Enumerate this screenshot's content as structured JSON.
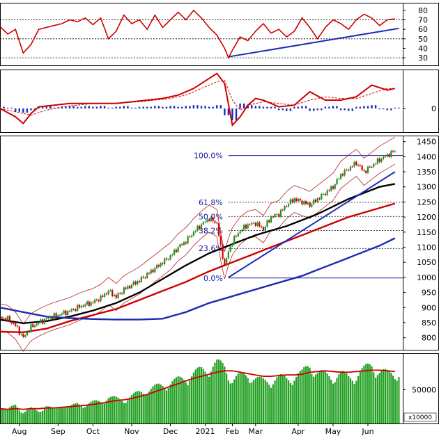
{
  "chart_data": [
    {
      "type": "line",
      "panel": "rsi",
      "y_ticks": [
        80,
        70,
        60,
        50,
        40,
        30
      ],
      "ylim": [
        22,
        88
      ],
      "reference_lines": [
        70,
        50,
        30
      ],
      "colors": {
        "line": "#cc0000",
        "trend": "#1a2bb5"
      },
      "trendline": {
        "x": [
          59,
          103
        ],
        "y": [
          31,
          61
        ]
      },
      "series": [
        {
          "x": [
            0,
            2,
            4,
            6,
            8,
            10,
            12,
            14,
            16,
            18,
            20,
            22,
            24,
            26,
            28,
            30,
            32,
            34,
            36,
            38,
            40,
            42,
            44,
            46,
            48,
            50,
            52,
            54,
            56,
            58,
            59,
            60,
            62,
            64,
            66,
            68,
            70,
            72,
            74,
            76,
            78,
            80,
            82,
            84,
            86,
            88,
            90,
            92,
            94,
            96,
            98,
            100,
            102
          ],
          "values": [
            63,
            55,
            60,
            35,
            44,
            60,
            62,
            64,
            66,
            70,
            68,
            72,
            65,
            72,
            50,
            58,
            75,
            66,
            70,
            60,
            75,
            62,
            70,
            78,
            70,
            80,
            72,
            62,
            54,
            40,
            30,
            38,
            52,
            48,
            58,
            66,
            56,
            60,
            52,
            58,
            72,
            62,
            50,
            62,
            70,
            66,
            60,
            70,
            76,
            72,
            64,
            70,
            71
          ]
        }
      ]
    },
    {
      "type": "bar",
      "panel": "macd",
      "y_ticks": [
        0
      ],
      "colors": {
        "macd": "#cc0000",
        "signal": "#cc0000",
        "histogram": "#1a2bb5"
      },
      "series": [
        {
          "x": [
            0,
            4,
            6,
            8,
            10,
            14,
            18,
            22,
            26,
            30,
            34,
            38,
            42,
            46,
            50,
            54,
            56,
            58,
            60,
            62,
            64,
            66,
            68,
            72,
            76,
            80,
            84,
            88,
            92,
            96,
            100,
            102
          ],
          "values": [
            0,
            -10,
            -18,
            -6,
            2,
            4,
            6,
            6,
            6,
            6,
            8,
            10,
            12,
            16,
            24,
            36,
            42,
            30,
            -20,
            -10,
            4,
            12,
            10,
            2,
            4,
            20,
            10,
            10,
            14,
            28,
            22,
            24
          ]
        },
        {
          "x": [
            0,
            4,
            8,
            12,
            16,
            20,
            24,
            28,
            32,
            36,
            40,
            44,
            48,
            52,
            56,
            58,
            60,
            62,
            64,
            68,
            72,
            76,
            80,
            84,
            88,
            92,
            96,
            100,
            102
          ],
          "values": [
            0,
            -4,
            -8,
            -2,
            2,
            4,
            6,
            6,
            7,
            8,
            10,
            12,
            16,
            24,
            32,
            34,
            10,
            -2,
            4,
            8,
            6,
            4,
            10,
            14,
            12,
            12,
            18,
            24,
            24
          ]
        },
        {
          "x": [
            0,
            2,
            4,
            6,
            8,
            10,
            12,
            14,
            16,
            18,
            20,
            22,
            24,
            26,
            28,
            30,
            32,
            34,
            36,
            38,
            40,
            42,
            44,
            46,
            48,
            50,
            52,
            54,
            56,
            58,
            60,
            62,
            64,
            66,
            68,
            70,
            72,
            74,
            76,
            78,
            80,
            82,
            84,
            86,
            88,
            90,
            92,
            94,
            96,
            98,
            100,
            102
          ],
          "values": [
            2,
            1,
            -4,
            -5,
            -2,
            2,
            3,
            1,
            2,
            3,
            2,
            3,
            2,
            3,
            1,
            2,
            3,
            1,
            2,
            2,
            3,
            2,
            3,
            2,
            3,
            4,
            3,
            2,
            4,
            -8,
            -14,
            6,
            4,
            3,
            2,
            2,
            -2,
            -3,
            2,
            3,
            -3,
            -2,
            2,
            3,
            -2,
            -3,
            2,
            3,
            4,
            -1,
            -2,
            1
          ]
        }
      ]
    },
    {
      "type": "line",
      "panel": "price",
      "y_ticks": [
        1450,
        1400,
        1350,
        1300,
        1250,
        1200,
        1150,
        1100,
        1050,
        1000,
        950,
        900,
        850,
        800
      ],
      "ylim": [
        760,
        1470
      ],
      "x_tick_labels": [
        "Aug",
        "Sep",
        "Oct",
        "Nov",
        "Dec",
        "2021",
        "Feb",
        "Mar",
        "Apr",
        "May",
        "Jun"
      ],
      "x_tick_positions": [
        5,
        15,
        24,
        34,
        44,
        53,
        60,
        66,
        77,
        86,
        95
      ],
      "fibonacci": [
        {
          "label": "100.0%",
          "value": 1404,
          "x_start": 59
        },
        {
          "label": "61.8%",
          "value": 1249,
          "x_start": 59
        },
        {
          "label": "50.0%",
          "value": 1202,
          "x_start": 59
        },
        {
          "label": "38.2%",
          "value": 1155,
          "x_start": 59
        },
        {
          "label": "23.6%",
          "value": 1096,
          "x_start": 59
        },
        {
          "label": "0.0%",
          "value": 998,
          "x_start": 59
        }
      ],
      "colors": {
        "up": "#1f8f1f",
        "down": "#cc0000",
        "ma_black": "#000000",
        "ma_red": "#cc0000",
        "ma_blue": "#1a2bb5",
        "trend": "#1a2bb5",
        "fib": "#1a1a9a"
      },
      "close": {
        "x": [
          0,
          2,
          4,
          6,
          8,
          10,
          12,
          14,
          16,
          18,
          20,
          22,
          24,
          26,
          28,
          30,
          32,
          34,
          36,
          38,
          40,
          42,
          44,
          46,
          48,
          50,
          52,
          54,
          56,
          57,
          58,
          59,
          60,
          62,
          64,
          66,
          68,
          70,
          72,
          74,
          76,
          78,
          80,
          82,
          84,
          86,
          88,
          90,
          92,
          94,
          96,
          98,
          100,
          102
        ],
        "values": [
          868,
          862,
          840,
          800,
          835,
          850,
          862,
          872,
          880,
          888,
          900,
          910,
          918,
          932,
          955,
          935,
          960,
          975,
          990,
          1010,
          1030,
          1050,
          1070,
          1100,
          1120,
          1150,
          1175,
          1195,
          1180,
          1100,
          1040,
          1085,
          1120,
          1155,
          1175,
          1180,
          1160,
          1200,
          1210,
          1240,
          1260,
          1250,
          1240,
          1260,
          1280,
          1300,
          1340,
          1360,
          1380,
          1350,
          1370,
          1390,
          1405,
          1420
        ]
      },
      "moving_averages": [
        {
          "name": "black",
          "x": [
            0,
            6,
            12,
            18,
            24,
            30,
            36,
            42,
            48,
            54,
            58,
            62,
            66,
            70,
            74,
            78,
            82,
            86,
            90,
            94,
            98,
            102
          ],
          "values": [
            860,
            848,
            855,
            870,
            890,
            915,
            950,
            995,
            1040,
            1080,
            1100,
            1120,
            1140,
            1155,
            1170,
            1190,
            1210,
            1235,
            1260,
            1280,
            1300,
            1310
          ]
        },
        {
          "name": "red",
          "x": [
            0,
            6,
            12,
            18,
            24,
            30,
            36,
            42,
            48,
            54,
            58,
            62,
            66,
            70,
            74,
            78,
            82,
            86,
            90,
            94,
            98,
            102
          ],
          "values": [
            820,
            818,
            830,
            855,
            875,
            895,
            925,
            955,
            985,
            1020,
            1040,
            1060,
            1080,
            1100,
            1120,
            1140,
            1160,
            1180,
            1200,
            1215,
            1230,
            1245
          ]
        },
        {
          "name": "blue",
          "x": [
            0,
            6,
            12,
            18,
            24,
            30,
            36,
            42,
            48,
            54,
            58,
            62,
            66,
            70,
            74,
            78,
            82,
            86,
            90,
            94,
            98,
            102
          ],
          "values": [
            900,
            885,
            870,
            865,
            862,
            860,
            860,
            863,
            885,
            915,
            930,
            945,
            960,
            975,
            990,
            1005,
            1025,
            1045,
            1065,
            1085,
            1105,
            1130
          ]
        }
      ],
      "trendline": {
        "x": [
          59,
          102
        ],
        "y": [
          1000,
          1350
        ]
      }
    },
    {
      "type": "bar",
      "panel": "volume",
      "y_ticks": [
        50000
      ],
      "units_label": "x10000",
      "colors": {
        "bars": "#22a022",
        "ma": "#cc0000"
      },
      "x": [
        0,
        2,
        4,
        6,
        8,
        10,
        12,
        14,
        16,
        18,
        20,
        22,
        24,
        26,
        28,
        30,
        32,
        34,
        36,
        38,
        40,
        42,
        44,
        46,
        48,
        50,
        52,
        54,
        56,
        58,
        60,
        62,
        64,
        66,
        68,
        70,
        72,
        74,
        76,
        78,
        80,
        82,
        84,
        86,
        88,
        90,
        92,
        94,
        96,
        98,
        100,
        102
      ],
      "values": [
        28000,
        22000,
        30000,
        18000,
        24000,
        20000,
        28000,
        22000,
        30000,
        26000,
        32000,
        30000,
        34000,
        36000,
        42000,
        40000,
        38000,
        44000,
        50000,
        54000,
        58000,
        62000,
        66000,
        70000,
        74000,
        80000,
        86000,
        90000,
        96000,
        92000,
        70000,
        76000,
        80000,
        72000,
        68000,
        70000,
        74000,
        72000,
        76000,
        80000,
        96000,
        82000,
        78000,
        76000,
        80000,
        74000,
        78000,
        86000,
        96000,
        84000,
        80000,
        82000
      ],
      "ma": [
        22000,
        21000,
        22000,
        21000,
        22000,
        22000,
        23000,
        23000,
        24000,
        25000,
        26000,
        27000,
        28000,
        30000,
        32000,
        34000,
        35000,
        37000,
        40000,
        43000,
        47000,
        51000,
        55000,
        59000,
        63000,
        67000,
        70000,
        73000,
        76000,
        78000,
        78000,
        76000,
        74000,
        72000,
        70000,
        70000,
        71000,
        72000,
        72000,
        73000,
        76000,
        77000,
        78000,
        77000,
        76000,
        76000,
        77000,
        78000,
        79000,
        79000,
        78000,
        77000
      ]
    }
  ]
}
